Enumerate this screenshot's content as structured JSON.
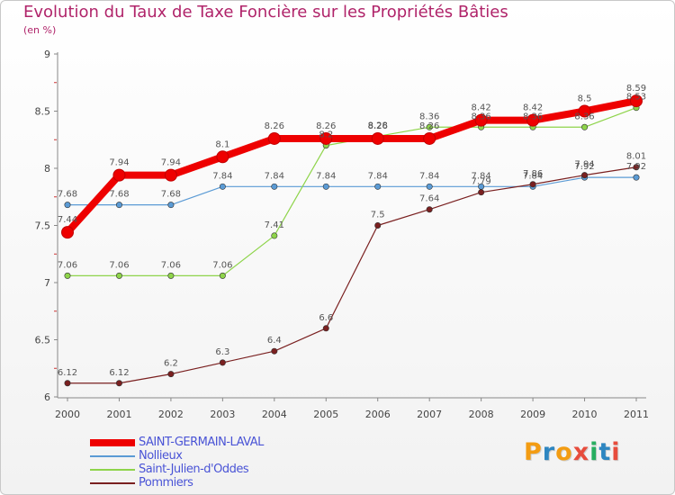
{
  "title": "Evolution du Taux de Taxe Foncière sur les Propriétés Bâties",
  "unit_label": "(en %)",
  "logo_text": "Proxiti",
  "colors": {
    "title": "#b0246a",
    "legend_text": "#4a54d6",
    "axis": "#888888",
    "logo": [
      "#f39c12",
      "#2e86c1",
      "#f39c12",
      "#e74c3c",
      "#27ae60",
      "#2e86c1",
      "#e74c3c"
    ]
  },
  "chart_data": {
    "type": "line",
    "title": "Evolution du Taux de Taxe Foncière sur les Propriétés Bâties",
    "ylabel": "(en %)",
    "xlabel": "",
    "x": [
      "2000",
      "2001",
      "2002",
      "2003",
      "2004",
      "2005",
      "2006",
      "2007",
      "2008",
      "2009",
      "2010",
      "2011"
    ],
    "ylim": [
      6,
      9
    ],
    "yticks": [
      "6",
      "6.5",
      "7",
      "7.5",
      "8",
      "8.5",
      "9"
    ],
    "grid": false,
    "legend": "bottom-left",
    "series": [
      {
        "name": "SAINT-GERMAIN-LAVAL",
        "color": "#ee0000",
        "emphasis": true,
        "values": [
          7.44,
          7.94,
          7.94,
          8.1,
          8.26,
          8.26,
          8.26,
          8.26,
          8.42,
          8.42,
          8.5,
          8.59
        ],
        "labels": [
          "7.44",
          "7.94",
          "7.94",
          "8.1",
          "8.26",
          "8.26",
          "8.26",
          "8.26",
          "8.42",
          "8.42",
          "8.5",
          "8.59"
        ]
      },
      {
        "name": "Nollieux",
        "color": "#5b9bd5",
        "emphasis": false,
        "values": [
          7.68,
          7.68,
          7.68,
          7.84,
          7.84,
          7.84,
          7.84,
          7.84,
          7.84,
          7.84,
          7.92,
          7.92
        ],
        "labels": [
          "7.68",
          "7.68",
          "7.68",
          "7.84",
          "7.84",
          "7.84",
          "7.84",
          "7.84",
          "7.84",
          "7.84",
          "7.92",
          "7.92"
        ]
      },
      {
        "name": "Saint-Julien-d'Oddes",
        "color": "#8ed44a",
        "emphasis": false,
        "values": [
          7.06,
          7.06,
          7.06,
          7.06,
          7.41,
          8.2,
          8.28,
          8.36,
          8.36,
          8.36,
          8.36,
          8.53
        ],
        "labels": [
          "7.06",
          "7.06",
          "7.06",
          "7.06",
          "7.41",
          "8.2",
          "8.28",
          "8.36",
          "8.36",
          "8.36",
          "8.36",
          "8.53"
        ]
      },
      {
        "name": "Pommiers",
        "color": "#7a2020",
        "emphasis": false,
        "values": [
          6.12,
          6.12,
          6.2,
          6.3,
          6.4,
          6.6,
          7.5,
          7.64,
          7.79,
          7.86,
          7.94,
          8.01
        ],
        "labels": [
          "6.12",
          "6.12",
          "6.2",
          "6.3",
          "6.4",
          "6.6",
          "7.5",
          "7.64",
          "7.79",
          "7.86",
          "7.94",
          "8.01"
        ]
      }
    ]
  }
}
